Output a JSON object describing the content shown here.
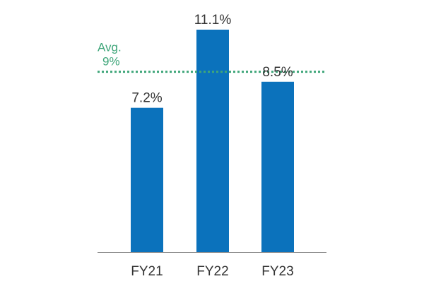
{
  "chart_data": {
    "type": "bar",
    "categories": [
      "FY21",
      "FY22",
      "FY23"
    ],
    "values": [
      7.2,
      11.1,
      8.5
    ],
    "value_labels": [
      "7.2%",
      "11.1%",
      "8.5%"
    ],
    "ylim": [
      0,
      11.1
    ],
    "average": {
      "value": 9,
      "label_line1": "Avg.",
      "label_line2": "9%"
    },
    "colors": {
      "bar": "#0b72bc",
      "average": "#3fa67a",
      "axis": "#8c8c8c"
    },
    "grid": false,
    "legend": "none"
  }
}
